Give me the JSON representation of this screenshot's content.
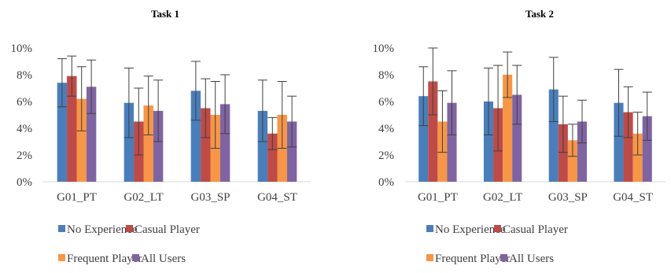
{
  "colors": {
    "No Experience": "#4a7ebb",
    "Casual Player": "#be4b48",
    "Frequent Player": "#f79646",
    "All Users": "#8064a2",
    "axis": "#d9d9d9",
    "text": "#404040",
    "error_bar": "#404040"
  },
  "chart_data": [
    {
      "type": "bar",
      "title": "Task 1",
      "xlabel": "",
      "ylabel": "",
      "ylim": [
        0,
        10
      ],
      "y_ticks": [
        "0%",
        "2%",
        "4%",
        "6%",
        "8%",
        "10%"
      ],
      "grid": false,
      "legend_position": "bottom",
      "categories": [
        "G01_PT",
        "G02_LT",
        "G03_SP",
        "G04_ST"
      ],
      "series": [
        {
          "name": "No Experience",
          "values": [
            7.4,
            5.9,
            6.8,
            5.3
          ],
          "error": [
            1.8,
            2.6,
            2.2,
            2.3
          ]
        },
        {
          "name": "Casual Player",
          "values": [
            7.9,
            4.5,
            5.5,
            3.6
          ],
          "error": [
            1.5,
            2.5,
            2.2,
            1.2
          ]
        },
        {
          "name": "Frequent Player",
          "values": [
            6.2,
            5.7,
            5.0,
            5.0
          ],
          "error": [
            2.4,
            2.2,
            2.5,
            2.5
          ]
        },
        {
          "name": "All Users",
          "values": [
            7.1,
            5.3,
            5.8,
            4.5
          ],
          "error": [
            2.0,
            2.3,
            2.2,
            1.9
          ]
        }
      ]
    },
    {
      "type": "bar",
      "title": "Task 2",
      "xlabel": "",
      "ylabel": "",
      "ylim": [
        0,
        10
      ],
      "y_ticks": [
        "0%",
        "2%",
        "4%",
        "6%",
        "8%",
        "10%"
      ],
      "grid": false,
      "legend_position": "bottom",
      "categories": [
        "G01_PT",
        "G02_LT",
        "G03_SP",
        "G04_ST"
      ],
      "series": [
        {
          "name": "No Experience",
          "values": [
            6.4,
            6.0,
            6.9,
            5.9
          ],
          "error": [
            2.2,
            2.5,
            2.4,
            2.5
          ]
        },
        {
          "name": "Casual Player",
          "values": [
            7.5,
            5.5,
            4.3,
            5.2
          ],
          "error": [
            2.5,
            3.2,
            2.1,
            1.9
          ]
        },
        {
          "name": "Frequent Player",
          "values": [
            4.5,
            8.0,
            3.1,
            3.6
          ],
          "error": [
            2.3,
            1.7,
            1.2,
            1.6
          ]
        },
        {
          "name": "All Users",
          "values": [
            5.9,
            6.5,
            4.5,
            4.9
          ],
          "error": [
            2.4,
            2.2,
            1.6,
            1.8
          ]
        }
      ]
    }
  ]
}
